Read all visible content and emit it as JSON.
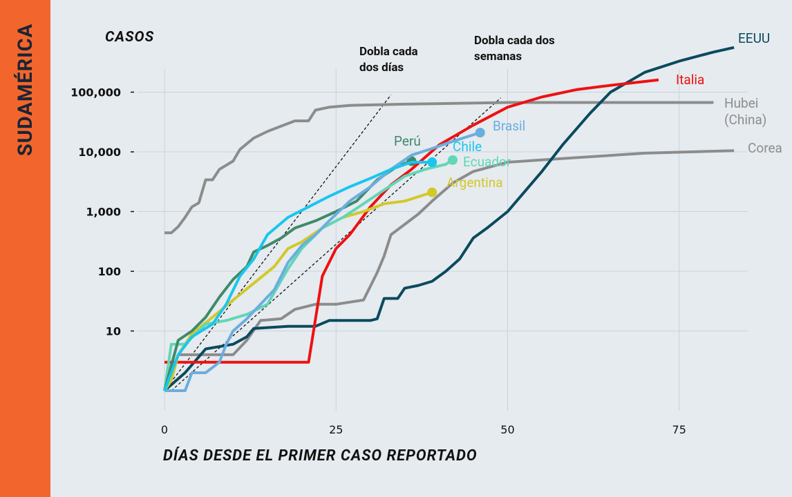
{
  "chart_data": {
    "type": "line",
    "log_scale": true,
    "grid": true,
    "side_label": "SUDAMÉRICA",
    "title": "CASOS",
    "xlabel": "DÍAS DESDE EL PRIMER CASO REPORTADO",
    "xlim": [
      -4,
      85
    ],
    "xticks": [
      0,
      25,
      50,
      75
    ],
    "ylim": [
      1,
      1000000
    ],
    "yticks": [
      10,
      100,
      {
        "value": 1000,
        "label": "1,000"
      },
      {
        "value": 10000,
        "label": "10,000"
      },
      {
        "value": 100000,
        "label": "100,000"
      }
    ],
    "reference_lines": [
      {
        "name": "Dobla cada dos días",
        "x": [
          0,
          33
        ],
        "values": [
          1,
          90000
        ]
      },
      {
        "name": "Dobla cada dos semanas",
        "x": [
          1,
          49
        ],
        "values": [
          1,
          80000
        ]
      }
    ],
    "series": [
      {
        "name": "Hubei (China)",
        "color": "#8c8c8c",
        "x": [
          0,
          1,
          2,
          3,
          4,
          5,
          6,
          7,
          8,
          10,
          11,
          13,
          15,
          17,
          19,
          21,
          22,
          24,
          27,
          35,
          50,
          80
        ],
        "values": [
          440,
          440,
          560,
          800,
          1200,
          1400,
          3400,
          3400,
          5100,
          7000,
          11000,
          17000,
          22000,
          27000,
          33000,
          33000,
          50000,
          56000,
          60000,
          63000,
          67000,
          67000
        ]
      },
      {
        "name": "Corea",
        "color": "#8c8c8c",
        "x": [
          0,
          2,
          6,
          10,
          12,
          14,
          17,
          19,
          22,
          25,
          29,
          31,
          32,
          33,
          35,
          37,
          39,
          42,
          45,
          50,
          60,
          70,
          83
        ],
        "values": [
          1,
          4,
          4,
          4,
          7,
          15,
          16,
          23,
          28,
          28,
          33,
          95,
          180,
          410,
          610,
          910,
          1500,
          3000,
          4700,
          6700,
          8000,
          9500,
          10500
        ]
      },
      {
        "name": "EEUU",
        "color": "#0b4a5e",
        "x": [
          0,
          3,
          6,
          10,
          12,
          13,
          18,
          22,
          24,
          30,
          31,
          32,
          34,
          35,
          37,
          39,
          41,
          43,
          45,
          47,
          50,
          55,
          58,
          62,
          65,
          70,
          75,
          80,
          83
        ],
        "values": [
          1,
          2,
          5,
          6,
          8,
          11,
          12,
          12,
          15,
          15,
          16,
          35,
          35,
          52,
          58,
          68,
          100,
          160,
          360,
          530,
          1000,
          4700,
          13000,
          44000,
          100000,
          215000,
          330000,
          470000,
          560000
        ]
      },
      {
        "name": "Italia",
        "color": "#ee1111",
        "x": [
          0,
          21,
          23,
          25,
          27,
          30,
          33,
          36,
          40,
          45,
          50,
          55,
          60,
          65,
          72
        ],
        "values": [
          3,
          3,
          83,
          240,
          410,
          1200,
          2800,
          5100,
          13000,
          28000,
          56000,
          83000,
          110000,
          130000,
          160000
        ]
      },
      {
        "name": "Argentina",
        "color": "#d2c82a",
        "markers": "end",
        "x": [
          0,
          1,
          2,
          4,
          7,
          10,
          13,
          16,
          18,
          20,
          23,
          26,
          29,
          32,
          35,
          39
        ],
        "values": [
          1,
          1.5,
          4,
          9,
          17,
          33,
          63,
          120,
          240,
          310,
          530,
          800,
          1000,
          1350,
          1500,
          2100
        ]
      },
      {
        "name": "Ecuador",
        "color": "#62d6b6",
        "markers": "end",
        "x": [
          0,
          1,
          3,
          6,
          9,
          12,
          15,
          18,
          20,
          23,
          26,
          29,
          32,
          35,
          38,
          41,
          42
        ],
        "values": [
          1,
          6,
          6,
          13,
          15,
          19,
          28,
          110,
          240,
          530,
          800,
          1350,
          2300,
          3900,
          5100,
          6200,
          7300
        ]
      },
      {
        "name": "Perú",
        "color": "#3f8a6a",
        "markers": "end",
        "x": [
          0,
          2,
          4,
          6,
          8,
          10,
          12,
          13,
          15,
          17,
          19,
          22,
          25,
          28,
          31,
          34,
          36
        ],
        "values": [
          1,
          7,
          10,
          17,
          37,
          73,
          120,
          210,
          270,
          360,
          530,
          700,
          1000,
          1500,
          3400,
          5800,
          7000
        ]
      },
      {
        "name": "Brasil",
        "color": "#6aaee0",
        "markers": "end",
        "x": [
          0,
          3,
          4,
          6,
          8,
          9,
          10,
          12,
          14,
          16,
          18,
          20,
          22,
          24,
          27,
          30,
          33,
          36,
          39,
          42,
          46
        ],
        "values": [
          1,
          1,
          2,
          2,
          3,
          6,
          10,
          16,
          28,
          49,
          140,
          270,
          410,
          700,
          1500,
          2600,
          5100,
          8800,
          11400,
          15000,
          21000
        ]
      },
      {
        "name": "Chile",
        "color": "#19c6ee",
        "markers": "end",
        "x": [
          0,
          2,
          4,
          7,
          9,
          11,
          13,
          15,
          18,
          21,
          24,
          27,
          30,
          33,
          36,
          39
        ],
        "values": [
          1,
          4,
          8,
          13,
          28,
          83,
          160,
          410,
          800,
          1200,
          1800,
          2600,
          3600,
          5100,
          6700,
          6700
        ]
      }
    ]
  }
}
